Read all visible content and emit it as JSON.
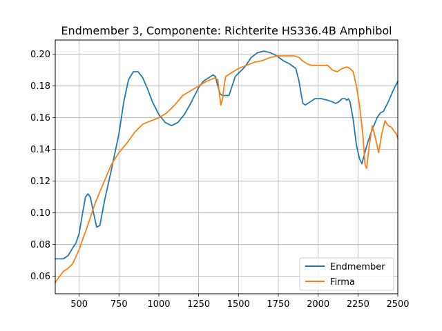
{
  "chart_data": {
    "type": "line",
    "title": "Endmember 3, Componente: Richterite HS336.4B Amphibol",
    "xlabel": "",
    "ylabel": "",
    "xlim": [
      350,
      2500
    ],
    "ylim": [
      0.049,
      0.209
    ],
    "xticks": [
      500,
      750,
      1000,
      1250,
      1500,
      1750,
      2000,
      2250,
      2500
    ],
    "yticks": [
      0.06,
      0.08,
      0.1,
      0.12,
      0.14,
      0.16,
      0.18,
      0.2
    ],
    "ytick_labels": [
      "0.06",
      "0.08",
      "0.10",
      "0.12",
      "0.14",
      "0.16",
      "0.18",
      "0.20"
    ],
    "grid": true,
    "legend_position": "lower-right",
    "series": [
      {
        "name": "Endmember",
        "color": "#1f77b4",
        "x": [
          350,
          400,
          430,
          460,
          480,
          500,
          520,
          540,
          555,
          570,
          590,
          610,
          630,
          660,
          700,
          750,
          780,
          810,
          840,
          870,
          900,
          930,
          960,
          1000,
          1040,
          1080,
          1120,
          1160,
          1200,
          1250,
          1280,
          1310,
          1340,
          1355,
          1370,
          1385,
          1400,
          1420,
          1440,
          1460,
          1480,
          1500,
          1540,
          1580,
          1620,
          1660,
          1700,
          1740,
          1780,
          1820,
          1860,
          1880,
          1895,
          1905,
          1920,
          1950,
          1980,
          2020,
          2060,
          2090,
          2110,
          2130,
          2150,
          2170,
          2180,
          2190,
          2200,
          2220,
          2240,
          2260,
          2275,
          2290,
          2310,
          2330,
          2350,
          2370,
          2390,
          2410,
          2440,
          2470,
          2500
        ],
        "y": [
          0.071,
          0.071,
          0.073,
          0.078,
          0.081,
          0.087,
          0.099,
          0.11,
          0.112,
          0.11,
          0.1,
          0.091,
          0.092,
          0.108,
          0.126,
          0.15,
          0.17,
          0.184,
          0.189,
          0.189,
          0.185,
          0.178,
          0.17,
          0.162,
          0.157,
          0.155,
          0.157,
          0.162,
          0.169,
          0.179,
          0.183,
          0.185,
          0.187,
          0.186,
          0.18,
          0.175,
          0.174,
          0.174,
          0.174,
          0.18,
          0.186,
          0.188,
          0.192,
          0.198,
          0.201,
          0.202,
          0.201,
          0.199,
          0.196,
          0.194,
          0.191,
          0.183,
          0.174,
          0.169,
          0.168,
          0.17,
          0.172,
          0.172,
          0.171,
          0.17,
          0.169,
          0.17,
          0.172,
          0.172,
          0.171,
          0.172,
          0.17,
          0.159,
          0.143,
          0.134,
          0.131,
          0.137,
          0.144,
          0.15,
          0.155,
          0.16,
          0.163,
          0.164,
          0.17,
          0.177,
          0.183
        ]
      },
      {
        "name": "Firma",
        "color": "#ff7f0e",
        "x": [
          350,
          370,
          400,
          430,
          460,
          500,
          550,
          600,
          650,
          700,
          750,
          800,
          850,
          900,
          950,
          1000,
          1050,
          1100,
          1150,
          1200,
          1250,
          1300,
          1350,
          1370,
          1380,
          1390,
          1400,
          1410,
          1420,
          1450,
          1500,
          1550,
          1600,
          1650,
          1700,
          1750,
          1800,
          1850,
          1880,
          1900,
          1930,
          1960,
          2000,
          2030,
          2060,
          2090,
          2120,
          2150,
          2180,
          2200,
          2220,
          2240,
          2260,
          2280,
          2295,
          2305,
          2320,
          2340,
          2360,
          2380,
          2400,
          2420,
          2440,
          2460,
          2480,
          2490,
          2500
        ],
        "y": [
          0.056,
          0.059,
          0.063,
          0.065,
          0.068,
          0.077,
          0.091,
          0.106,
          0.118,
          0.13,
          0.138,
          0.144,
          0.151,
          0.156,
          0.158,
          0.16,
          0.163,
          0.168,
          0.174,
          0.177,
          0.18,
          0.183,
          0.185,
          0.184,
          0.175,
          0.168,
          0.172,
          0.18,
          0.186,
          0.188,
          0.191,
          0.193,
          0.195,
          0.196,
          0.198,
          0.199,
          0.199,
          0.199,
          0.198,
          0.196,
          0.194,
          0.193,
          0.193,
          0.193,
          0.193,
          0.19,
          0.189,
          0.191,
          0.192,
          0.191,
          0.189,
          0.18,
          0.168,
          0.15,
          0.13,
          0.128,
          0.142,
          0.155,
          0.147,
          0.138,
          0.15,
          0.158,
          0.155,
          0.154,
          0.151,
          0.15,
          0.147
        ]
      }
    ]
  }
}
